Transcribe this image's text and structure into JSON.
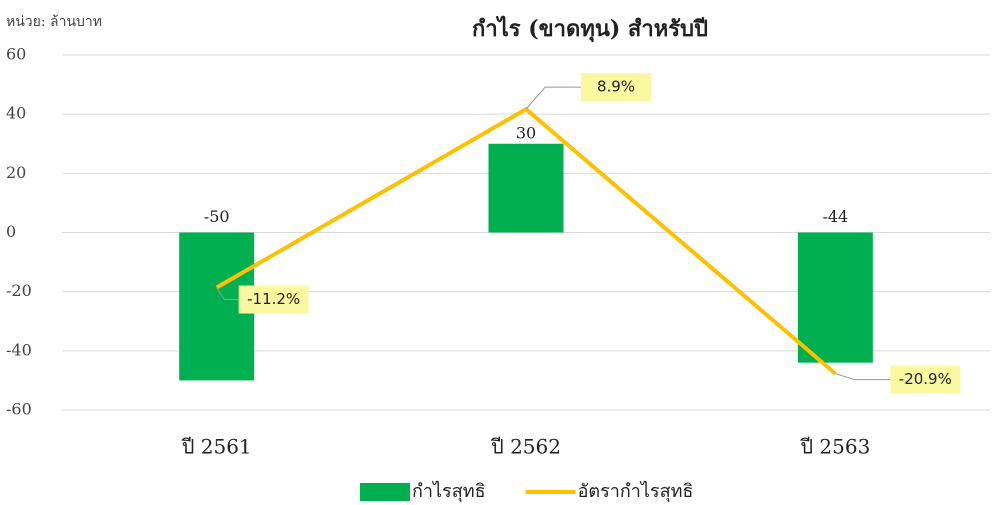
{
  "chart_data": {
    "type": "bar_line",
    "title": "กำไร (ขาดทุน) สำหรับปี",
    "unit_label": "หน่วย: ล้านบาท",
    "categories": [
      "ปี 2561",
      "ปี 2562",
      "ปี 2563"
    ],
    "series": [
      {
        "name": "กำไรสุทธิ",
        "type": "bar",
        "color": "#00b050",
        "values": [
          -50,
          30,
          -44
        ]
      },
      {
        "name": "อัตรากำไรสุทธิ",
        "type": "line",
        "axis": "y2",
        "color": "#ffc000",
        "values": [
          -11.2,
          8.9,
          -20.9
        ],
        "value_labels": [
          "-11.2%",
          "8.9%",
          "-20.9%"
        ]
      }
    ],
    "ylim": [
      -60,
      60
    ],
    "yticks": [
      -60,
      -40,
      -20,
      0,
      20,
      40,
      60
    ],
    "y2lim": [
      -25,
      15
    ],
    "grid": true,
    "legend": "bottom"
  }
}
